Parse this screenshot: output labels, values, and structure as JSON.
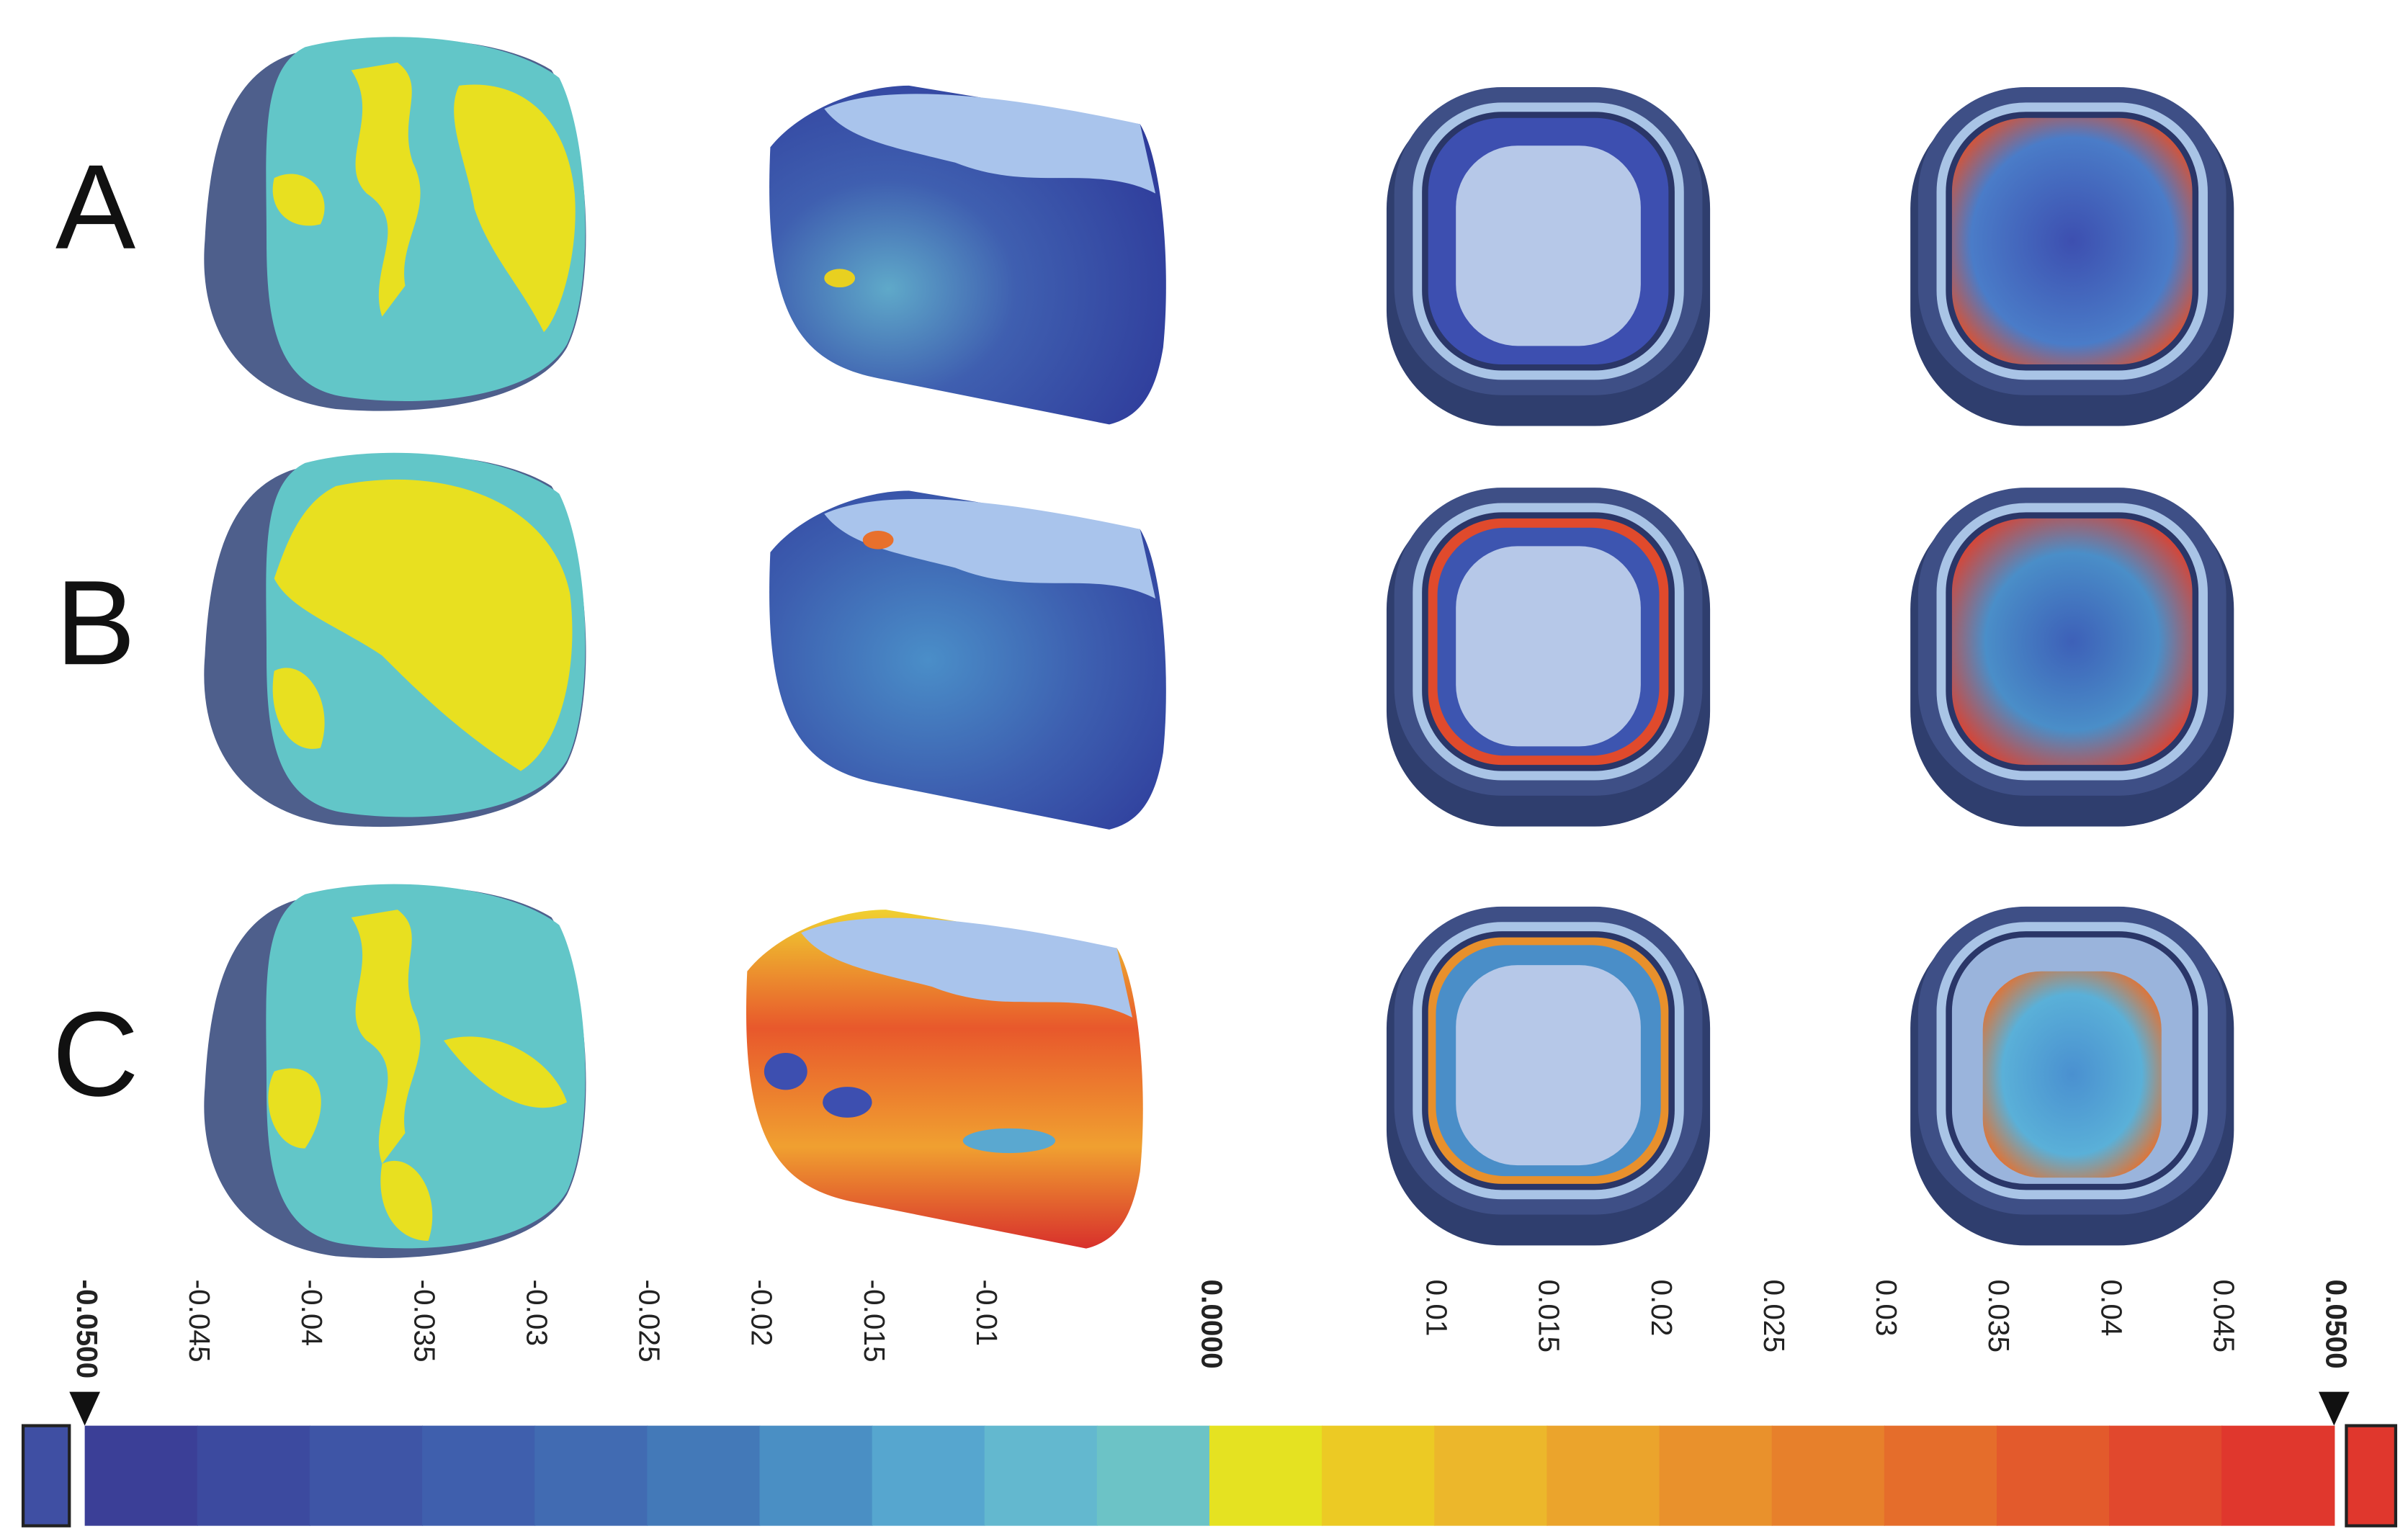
{
  "rows": [
    {
      "label": "A"
    },
    {
      "label": "B"
    },
    {
      "label": "C"
    }
  ],
  "colorbar": {
    "ticks": [
      "-0.0500",
      "-0.045",
      "-0.04",
      "-0.035",
      "-0.03",
      "-0.025",
      "-0.02",
      "-0.015",
      "-0.01",
      null,
      "0.0000",
      null,
      "0.01",
      "0.015",
      "0.02",
      "0.025",
      "0.03",
      "0.035",
      "0.04",
      "0.045",
      "0.0500"
    ],
    "colors": [
      "#3b3f97",
      "#3c4a9f",
      "#3e55a6",
      "#3f5fad",
      "#416bb2",
      "#4379b8",
      "#4a8fc4",
      "#56a6cf",
      "#63b8cf",
      "#6cc3c6",
      "#e5e221",
      "#ecca24",
      "#ecb72b",
      "#eba42c",
      "#e9912c",
      "#e7802b",
      "#e56d2b",
      "#e35a2c",
      "#e1482d",
      "#e0372d"
    ],
    "under_color": "#3f4fa3",
    "over_color": "#e0372d"
  }
}
